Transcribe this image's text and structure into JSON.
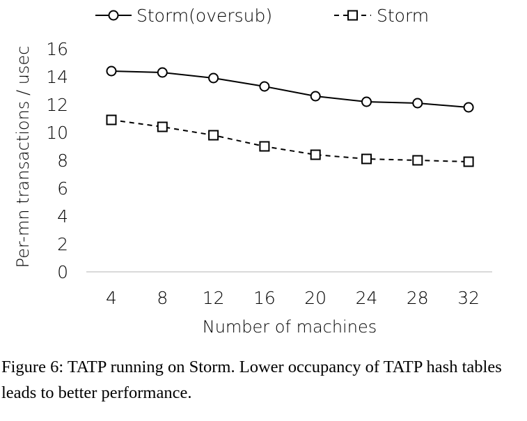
{
  "chart_data": {
    "type": "line",
    "categories": [
      "4",
      "8",
      "12",
      "16",
      "20",
      "24",
      "28",
      "32"
    ],
    "series": [
      {
        "name": "Storm(oversub)",
        "values": [
          14.4,
          14.3,
          13.9,
          13.3,
          12.6,
          12.2,
          12.1,
          11.8
        ],
        "marker": "circle",
        "dash": "solid"
      },
      {
        "name": "Storm",
        "values": [
          10.9,
          10.4,
          9.8,
          9.0,
          8.4,
          8.1,
          8.0,
          7.9
        ],
        "marker": "square",
        "dash": "dashed"
      }
    ],
    "xlabel": "Number of machines",
    "ylabel": "Per-mn transactions / usec",
    "yticks": [
      "0",
      "2",
      "4",
      "6",
      "8",
      "10",
      "12",
      "14",
      "16"
    ],
    "ylim": [
      0,
      16
    ],
    "grid": false,
    "legend": "top"
  },
  "caption": "Figure 6: TATP running on Storm. Lower occupancy of TATP hash tables leads to better performance.",
  "colors": {
    "line": "#000000",
    "axis": "#d9d9d9",
    "marker_fill": "#ffffff"
  }
}
